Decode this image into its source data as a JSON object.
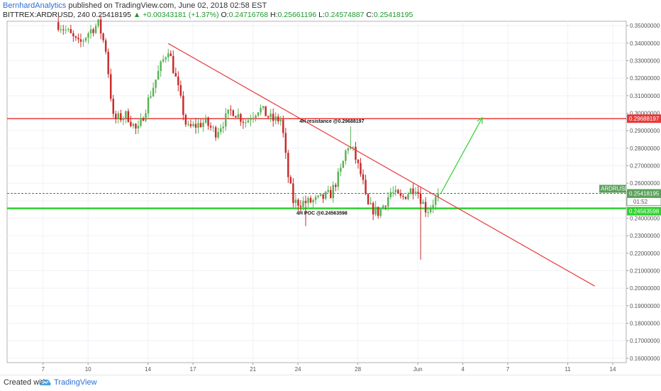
{
  "header": {
    "author": "BernhardAnalytics",
    "published_text": "published on TradingView.com, June 02, 2018 02:58 EST"
  },
  "ohlc": {
    "symbol": "BITTREX:ARDRUSD, 240",
    "last": "0.25418195",
    "change": "▲ +0.00343181 (+1.37%)",
    "o_label": "O:",
    "o": "0.24716768",
    "h_label": "H:",
    "h": "0.25661196",
    "l_label": "L:",
    "l": "0.24574887",
    "c_label": "C:",
    "c": "0.25418195"
  },
  "footer": {
    "created_with": "Created with",
    "brand": "TradingView"
  },
  "colors": {
    "up": "#5ab255",
    "down": "#c82a2a",
    "resistance": "#e8393b",
    "poc": "#2ed12e",
    "trendline": "#e8393b",
    "projection": "#2ed12e",
    "price_tag": "#5aa05a",
    "grid": "#eef2f7"
  },
  "chart_data": {
    "type": "candlestick",
    "symbol": "ARDRUSD",
    "y_ticks": [
      "0.35000000",
      "0.34000000",
      "0.33000000",
      "0.32000000",
      "0.31000000",
      "0.30000000",
      "0.29000000",
      "0.28000000",
      "0.27000000",
      "0.26000000",
      "0.25000000",
      "0.24000000",
      "0.23000000",
      "0.22000000",
      "0.21000000",
      "0.20000000",
      "0.19000000",
      "0.18000000",
      "0.17000000",
      "0.16000000"
    ],
    "y_range": [
      0.1575,
      0.3525
    ],
    "x_labels": [
      {
        "label": "7",
        "day": 7
      },
      {
        "label": "10",
        "day": 10
      },
      {
        "label": "14",
        "day": 14
      },
      {
        "label": "17",
        "day": 17
      },
      {
        "label": "21",
        "day": 21
      },
      {
        "label": "24",
        "day": 24
      },
      {
        "label": "28",
        "day": 28
      },
      {
        "label": "Jun",
        "day": 32
      },
      {
        "label": "4",
        "day": 35
      },
      {
        "label": "7",
        "day": 38
      },
      {
        "label": "11",
        "day": 42
      },
      {
        "label": "14",
        "day": 45
      }
    ],
    "x_range_days": [
      4.6,
      45.9
    ],
    "anchors": [
      {
        "t": 7.85,
        "p": 0.352
      },
      {
        "t": 8.6,
        "p": 0.3468
      },
      {
        "t": 9.4,
        "p": 0.339
      },
      {
        "t": 10.1,
        "p": 0.347
      },
      {
        "t": 10.7,
        "p": 0.351
      },
      {
        "t": 11.2,
        "p": 0.336
      },
      {
        "t": 11.45,
        "p": 0.315
      },
      {
        "t": 11.7,
        "p": 0.296
      },
      {
        "t": 12.6,
        "p": 0.299
      },
      {
        "t": 13.3,
        "p": 0.289
      },
      {
        "t": 14.0,
        "p": 0.307
      },
      {
        "t": 14.8,
        "p": 0.326
      },
      {
        "t": 15.35,
        "p": 0.337
      },
      {
        "t": 15.9,
        "p": 0.318
      },
      {
        "t": 16.6,
        "p": 0.291
      },
      {
        "t": 17.8,
        "p": 0.295
      },
      {
        "t": 18.5,
        "p": 0.289
      },
      {
        "t": 19.6,
        "p": 0.302
      },
      {
        "t": 20.5,
        "p": 0.295
      },
      {
        "t": 21.4,
        "p": 0.303
      },
      {
        "t": 22.3,
        "p": 0.296
      },
      {
        "t": 22.9,
        "p": 0.2965
      },
      {
        "t": 23.3,
        "p": 0.266
      },
      {
        "t": 23.7,
        "p": 0.249
      },
      {
        "t": 24.6,
        "p": 0.249
      },
      {
        "t": 25.4,
        "p": 0.2505
      },
      {
        "t": 26.2,
        "p": 0.254
      },
      {
        "t": 26.9,
        "p": 0.268
      },
      {
        "t": 27.3,
        "p": 0.282
      },
      {
        "t": 27.7,
        "p": 0.278
      },
      {
        "t": 28.3,
        "p": 0.262
      },
      {
        "t": 28.6,
        "p": 0.247
      },
      {
        "t": 29.4,
        "p": 0.243
      },
      {
        "t": 30.2,
        "p": 0.255
      },
      {
        "t": 30.9,
        "p": 0.251
      },
      {
        "t": 31.5,
        "p": 0.256
      },
      {
        "t": 31.85,
        "p": 0.258
      },
      {
        "t": 32.2,
        "p": 0.251
      },
      {
        "t": 32.6,
        "p": 0.244
      },
      {
        "t": 33.0,
        "p": 0.249
      },
      {
        "t": 33.45,
        "p": 0.2542
      }
    ],
    "special_wicks": [
      {
        "t": 32.15,
        "low": 0.2163
      },
      {
        "t": 27.55,
        "high": 0.2925
      },
      {
        "t": 24.6,
        "low": 0.2355
      }
    ],
    "current_price": 0.25418195,
    "levels": [
      {
        "name": "resistance",
        "price": 0.29688197,
        "label": "4H resistance @0.29688197",
        "tag": "0.29688197",
        "label_day": 24.1
      },
      {
        "name": "poc",
        "price": 0.24563598,
        "label": "4H POC @0.24563598",
        "tag": "0.24563598",
        "label_day": 23.9
      }
    ],
    "price_tag": {
      "symbol": "ARDRUSD",
      "value": "0.25418195",
      "countdown": "01:52"
    },
    "trendline": {
      "start": {
        "t": 15.35,
        "p": 0.3398
      },
      "end": {
        "t": 43.8,
        "p": 0.2012
      }
    },
    "projection_arrow": {
      "start": {
        "t": 33.55,
        "p": 0.2545
      },
      "end": {
        "t": 36.3,
        "p": 0.2975
      }
    }
  }
}
